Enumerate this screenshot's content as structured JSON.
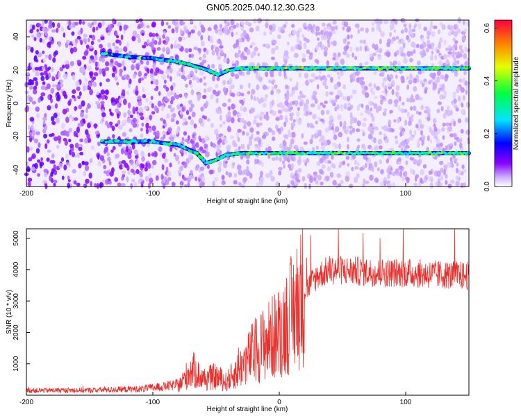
{
  "title": "GN05.2025.040.12.30.G23",
  "chart_data": [
    {
      "type": "heatmap",
      "xlabel": "Height of straight line (km)",
      "ylabel": "Frequency (Hz)",
      "xlim": [
        -200,
        150
      ],
      "ylim": [
        -50,
        50
      ],
      "xticks": [
        -200,
        -100,
        0,
        100
      ],
      "yticks": [
        40,
        20,
        0,
        -20,
        -40
      ],
      "colorbar": {
        "label": "Normalized spectral amplitude",
        "range": [
          0.0,
          0.63
        ],
        "ticks": [
          0.0,
          0.2,
          0.4,
          0.6
        ]
      },
      "ridges": [
        {
          "x": [
            -140,
            -120,
            -100,
            -80,
            -60,
            -48,
            -40,
            -30,
            -10,
            50,
            150
          ],
          "y": [
            30,
            28,
            27,
            25,
            21,
            17,
            20,
            21,
            21,
            21,
            21
          ]
        },
        {
          "x": [
            -140,
            -120,
            -100,
            -80,
            -65,
            -58,
            -50,
            -42,
            -30,
            0,
            150
          ],
          "y": [
            -23,
            -23,
            -23,
            -25,
            -30,
            -36,
            -34,
            -31,
            -30,
            -30,
            -30
          ]
        }
      ],
      "colormap": [
        "#ffffff",
        "#8b00ff",
        "#0000ff",
        "#00e5ff",
        "#00ff40",
        "#e6ff00",
        "#ff8000",
        "#ff0040"
      ]
    },
    {
      "type": "line",
      "xlabel": "Height of straight line (km)",
      "ylabel": "SNR (10 * v/v)",
      "xlim": [
        -200,
        150
      ],
      "ylim": [
        0,
        5300
      ],
      "xticks": [
        -200,
        -100,
        0,
        100
      ],
      "yticks": [
        1000,
        2000,
        3000,
        4000,
        5000
      ],
      "color": "#e8302c",
      "trend": {
        "x": [
          -200,
          -150,
          -110,
          -90,
          -78,
          -72,
          -68,
          -60,
          -50,
          -42,
          -30,
          -20,
          -10,
          0,
          10,
          20,
          30,
          40,
          60,
          80,
          100,
          120,
          150
        ],
        "y": [
          150,
          160,
          200,
          280,
          350,
          700,
          800,
          500,
          600,
          420,
          900,
          1400,
          1700,
          2000,
          2600,
          3300,
          3800,
          4000,
          3950,
          3900,
          3900,
          3850,
          3800
        ]
      }
    }
  ]
}
